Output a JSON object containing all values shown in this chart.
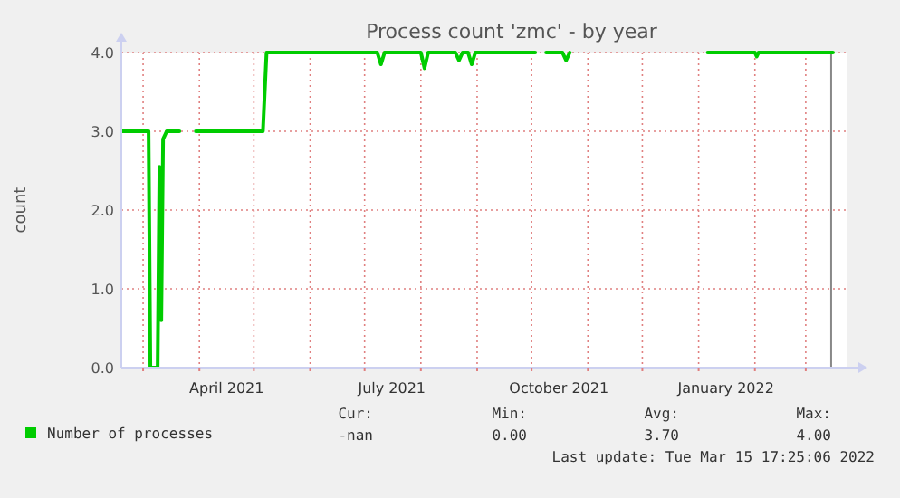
{
  "chart_data": {
    "type": "line",
    "title": "Process count 'zmc' - by year",
    "ylabel": "count",
    "x": [
      "2021-02-17",
      "2021-03-04",
      "2021-03-05",
      "2021-03-09",
      "2021-03-10",
      "2021-03-11",
      "2021-03-12",
      "2021-03-14",
      "2021-03-21",
      "2021-03-22",
      "2021-03-30",
      "2021-05-06",
      "2021-05-08",
      "2021-07-08",
      "2021-07-10",
      "2021-07-12",
      "2021-08-01",
      "2021-08-03",
      "2021-08-05",
      "2021-08-20",
      "2021-08-22",
      "2021-08-24",
      "2021-08-27",
      "2021-08-29",
      "2021-08-31",
      "2021-10-03",
      "2021-10-04",
      "2021-10-09",
      "2021-10-18",
      "2021-10-20",
      "2021-10-22",
      "2021-10-23",
      "2022-01-06",
      "2022-02-01",
      "2022-02-02",
      "2022-02-03",
      "2022-03-16"
    ],
    "series": [
      {
        "name": "Number of processes",
        "color": "#00cc00",
        "values": [
          3.0,
          3.0,
          0.0,
          0.0,
          2.55,
          0.6,
          2.9,
          3.0,
          3.0,
          null,
          3.0,
          3.0,
          4.0,
          4.0,
          3.85,
          4.0,
          4.0,
          3.8,
          4.0,
          4.0,
          3.9,
          4.0,
          4.0,
          3.85,
          4.0,
          4.0,
          null,
          4.0,
          4.0,
          3.9,
          4.0,
          null,
          4.0,
          4.0,
          3.95,
          4.0,
          4.0
        ]
      }
    ],
    "xlim": [
      "2021-02-17",
      "2022-03-24"
    ],
    "xticks": [
      {
        "value": "2021-03-01",
        "label": null
      },
      {
        "value": "2021-04-01",
        "label": null
      },
      {
        "value": "2021-04-16",
        "label": "April 2021"
      },
      {
        "value": "2021-05-01",
        "label": null
      },
      {
        "value": "2021-06-01",
        "label": null
      },
      {
        "value": "2021-07-01",
        "label": null
      },
      {
        "value": "2021-07-16",
        "label": "July 2021"
      },
      {
        "value": "2021-08-01",
        "label": null
      },
      {
        "value": "2021-09-01",
        "label": null
      },
      {
        "value": "2021-10-01",
        "label": null
      },
      {
        "value": "2021-10-16",
        "label": "October 2021"
      },
      {
        "value": "2021-11-01",
        "label": null
      },
      {
        "value": "2021-12-01",
        "label": null
      },
      {
        "value": "2022-01-01",
        "label": null
      },
      {
        "value": "2022-01-16",
        "label": "January 2022"
      },
      {
        "value": "2022-02-01",
        "label": null
      },
      {
        "value": "2022-03-01",
        "label": null
      }
    ],
    "ylim": [
      0,
      4
    ],
    "yticks": [
      {
        "value": 0,
        "label": "0.0"
      },
      {
        "value": 1,
        "label": "1.0"
      },
      {
        "value": 2,
        "label": "2.0"
      },
      {
        "value": 3,
        "label": "3.0"
      },
      {
        "value": 4,
        "label": "4.0"
      }
    ],
    "grid": true,
    "legend": "bottom left",
    "line_style": "solid",
    "marker": "none",
    "ref_lines": [
      {
        "axis": "x",
        "value": "2022-03-15",
        "label": null,
        "color": "#888888"
      }
    ],
    "annotations": [
      "Cur:",
      "-nan",
      "Min:",
      "0.00",
      "Avg:",
      "3.70",
      "Max:",
      "4.00",
      "Last update: Tue Mar 15 17:25:06 2022"
    ]
  }
}
